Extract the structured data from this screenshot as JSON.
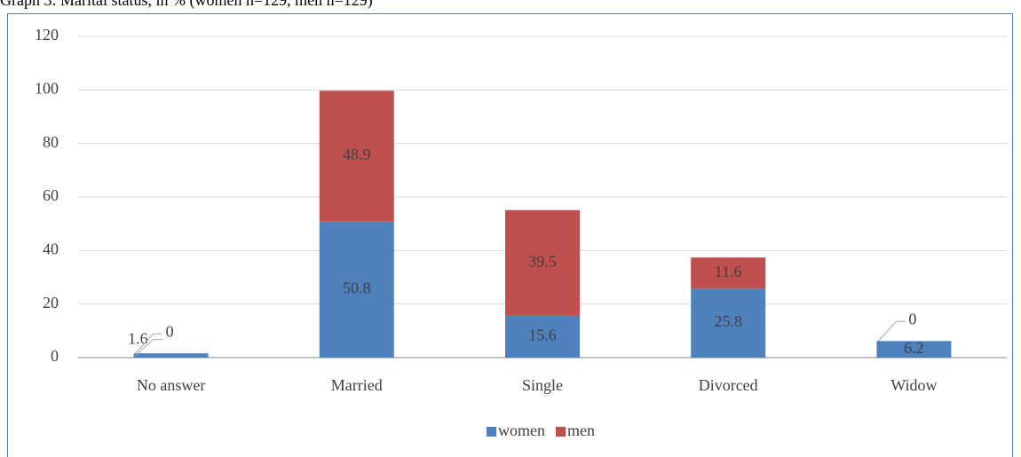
{
  "chart_data": {
    "type": "stacked_bar",
    "title": "Graph 3: Marital status, in % (women n=129, men n=129)",
    "categories": [
      "No answer",
      "Married",
      "Single",
      "Divorced",
      "Widow"
    ],
    "series": [
      {
        "name": "women",
        "color": "#4f81bd",
        "values": [
          1.6,
          50.8,
          15.6,
          25.8,
          6.2
        ]
      },
      {
        "name": "men",
        "color": "#c0504d",
        "values": [
          0,
          48.9,
          39.5,
          11.6,
          0
        ]
      }
    ],
    "ylim": [
      0,
      120
    ],
    "yticks": [
      0,
      20,
      40,
      60,
      80,
      100,
      120
    ],
    "grid": true,
    "legend": "bottom"
  }
}
